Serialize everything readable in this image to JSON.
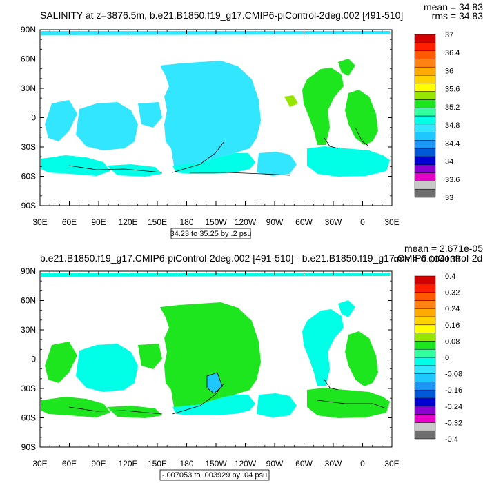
{
  "chart_data": [
    {
      "type": "heatmap",
      "title": "SALINITY at z=3876.5m, b.e21.B1850.f19_g17.CMIP6-piControl-2deg.002 [491-510]",
      "stats": {
        "mean": "mean = 34.83",
        "rms": "rms = 34.83"
      },
      "x_ticks": [
        "30E",
        "60E",
        "90E",
        "120E",
        "150E",
        "180",
        "150W",
        "120W",
        "90W",
        "60W",
        "30W",
        "0",
        "30E"
      ],
      "y_ticks": [
        "90N",
        "60N",
        "30N",
        "0",
        "30S",
        "60S",
        "90S"
      ],
      "xlim": [
        30,
        390
      ],
      "ylim": [
        -90,
        90
      ],
      "contour_info": "34.23 to 35.25 by .2 psu",
      "colorbar": {
        "labels": [
          "37",
          "36.4",
          "36",
          "35.6",
          "35.2",
          "34.8",
          "34.4",
          "34",
          "33.6",
          "33"
        ],
        "colors": [
          "#6e6e6e",
          "#c8c8c8",
          "#e600c8",
          "#8c00d2",
          "#0000d2",
          "#005ad7",
          "#1e96f5",
          "#1ec8ff",
          "#32e6ff",
          "#00ffe6",
          "#32ffa0",
          "#1ee61e",
          "#96e600",
          "#ffff00",
          "#ffd200",
          "#ffaa00",
          "#ff8214",
          "#ff5a00",
          "#ff1e00",
          "#d20000"
        ]
      }
    },
    {
      "type": "heatmap",
      "title": "b.e21.B1850.f19_g17.CMIP6-piControl-2deg.002 [491-510] - b.e21.B1850.f19_g17.CMIP6-piControl-2de",
      "stats": {
        "mean": "mean = 2.671e-05",
        "rms": "rms = 0.004138"
      },
      "x_ticks": [
        "30E",
        "60E",
        "90E",
        "120E",
        "150E",
        "180",
        "150W",
        "120W",
        "90W",
        "60W",
        "30W",
        "0",
        "30E"
      ],
      "y_ticks": [
        "90N",
        "60N",
        "30N",
        "0",
        "30S",
        "60S",
        "90S"
      ],
      "xlim": [
        30,
        390
      ],
      "ylim": [
        -90,
        90
      ],
      "contour_info": "-.007053 to .003929 by .04 psu",
      "colorbar": {
        "labels": [
          "0.4",
          "0.32",
          "0.24",
          "0.16",
          "0.08",
          "0",
          "-0.08",
          "-0.16",
          "-0.24",
          "-0.32",
          "-0.4"
        ],
        "colors": [
          "#6e6e6e",
          "#c8c8c8",
          "#e600c8",
          "#8c00d2",
          "#0000d2",
          "#005ad7",
          "#1e96f5",
          "#1ec8ff",
          "#32e6ff",
          "#00ffe6",
          "#32ffa0",
          "#1ee61e",
          "#96e600",
          "#ffff00",
          "#ffd200",
          "#ffaa00",
          "#ff8214",
          "#ff5a00",
          "#ff1e00",
          "#d20000"
        ]
      }
    }
  ]
}
